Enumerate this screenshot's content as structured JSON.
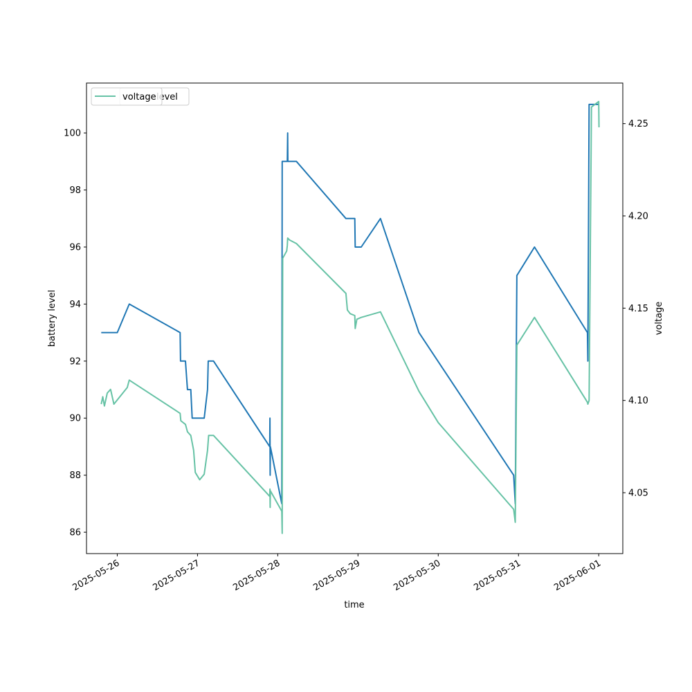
{
  "chart_data": {
    "type": "line",
    "xlabel": "time",
    "ylabel_left": "battery level",
    "ylabel_right": "voltage",
    "x_ticks": [
      "2025-05-26",
      "2025-05-27",
      "2025-05-28",
      "2025-05-29",
      "2025-05-30",
      "2025-05-31",
      "2025-06-01"
    ],
    "y_left_ticks": [
      86,
      88,
      90,
      92,
      94,
      96,
      98,
      100
    ],
    "y_right_ticks": [
      "4.05",
      "4.10",
      "4.15",
      "4.20",
      "4.25"
    ],
    "x_range": [
      "2025-05-25T14:48",
      "2025-06-01T07:12"
    ],
    "y_left_range": [
      85.25,
      101.75
    ],
    "y_right_range": [
      4.017,
      4.272
    ],
    "legend": {
      "placement": "upper left",
      "entries": [
        "voltage"
      ],
      "obscured_entry": "level",
      "note_visible_text": "voltage level"
    },
    "colors": {
      "level": "#1f77b4",
      "voltage": "#66c2a5"
    },
    "series": [
      {
        "axis": "left",
        "points": [
          [
            "2025-05-25T19:12",
            93
          ],
          [
            "2025-05-26T00:00",
            93
          ],
          [
            "2025-05-26T03:36",
            94
          ],
          [
            "2025-05-26T18:48",
            93
          ],
          [
            "2025-05-26T18:55",
            92
          ],
          [
            "2025-05-26T20:24",
            92
          ],
          [
            "2025-05-26T21:00",
            91
          ],
          [
            "2025-05-26T22:00",
            91
          ],
          [
            "2025-05-26T22:24",
            90
          ],
          [
            "2025-05-27T02:00",
            90
          ],
          [
            "2025-05-27T03:00",
            91
          ],
          [
            "2025-05-27T03:12",
            92
          ],
          [
            "2025-05-27T04:48",
            92
          ],
          [
            "2025-05-27T21:36",
            89
          ],
          [
            "2025-05-27T21:40",
            90
          ],
          [
            "2025-05-27T21:44",
            88
          ],
          [
            "2025-05-27T21:48",
            89
          ],
          [
            "2025-05-28T01:12",
            87
          ],
          [
            "2025-05-28T01:20",
            99
          ],
          [
            "2025-05-28T02:52",
            99
          ],
          [
            "2025-05-28T02:58",
            100
          ],
          [
            "2025-05-28T03:02",
            99
          ],
          [
            "2025-05-28T05:36",
            99
          ],
          [
            "2025-05-28T20:24",
            97
          ],
          [
            "2025-05-28T23:02",
            97
          ],
          [
            "2025-05-28T23:10",
            96
          ],
          [
            "2025-05-29T00:58",
            96
          ],
          [
            "2025-05-29T06:43",
            97
          ],
          [
            "2025-05-29T18:14",
            93
          ],
          [
            "2025-05-30T22:34",
            88
          ],
          [
            "2025-05-30T23:02",
            87
          ],
          [
            "2025-05-30T23:31",
            95
          ],
          [
            "2025-05-31T04:48",
            96
          ],
          [
            "2025-05-31T20:38",
            93
          ],
          [
            "2025-05-31T20:45",
            92
          ],
          [
            "2025-05-31T21:07",
            101
          ],
          [
            "2025-06-01T00:00",
            101
          ]
        ]
      },
      {
        "name": "voltage",
        "axis": "right",
        "points": [
          [
            "2025-05-25T19:12",
            4.098
          ],
          [
            "2025-05-25T19:40",
            4.102
          ],
          [
            "2025-05-25T20:10",
            4.097
          ],
          [
            "2025-05-25T21:00",
            4.104
          ],
          [
            "2025-05-25T22:00",
            4.106
          ],
          [
            "2025-05-25T23:00",
            4.098
          ],
          [
            "2025-05-26T03:00",
            4.107
          ],
          [
            "2025-05-26T03:36",
            4.111
          ],
          [
            "2025-05-26T18:48",
            4.093
          ],
          [
            "2025-05-26T19:00",
            4.089
          ],
          [
            "2025-05-26T20:24",
            4.087
          ],
          [
            "2025-05-26T21:00",
            4.083
          ],
          [
            "2025-05-26T22:00",
            4.081
          ],
          [
            "2025-05-26T22:50",
            4.073
          ],
          [
            "2025-05-26T23:20",
            4.061
          ],
          [
            "2025-05-27T00:40",
            4.057
          ],
          [
            "2025-05-27T02:00",
            4.06
          ],
          [
            "2025-05-27T03:00",
            4.073
          ],
          [
            "2025-05-27T03:20",
            4.081
          ],
          [
            "2025-05-27T04:48",
            4.081
          ],
          [
            "2025-05-27T21:36",
            4.048
          ],
          [
            "2025-05-27T21:40",
            4.052
          ],
          [
            "2025-05-27T21:44",
            4.042
          ],
          [
            "2025-05-27T21:48",
            4.051
          ],
          [
            "2025-05-28T01:12",
            4.04
          ],
          [
            "2025-05-28T01:20",
            4.028
          ],
          [
            "2025-05-28T01:28",
            4.177
          ],
          [
            "2025-05-28T02:40",
            4.181
          ],
          [
            "2025-05-28T02:52",
            4.184
          ],
          [
            "2025-05-28T02:58",
            4.188
          ],
          [
            "2025-05-28T03:30",
            4.187
          ],
          [
            "2025-05-28T05:36",
            4.185
          ],
          [
            "2025-05-28T20:24",
            4.158
          ],
          [
            "2025-05-28T20:50",
            4.149
          ],
          [
            "2025-05-28T21:40",
            4.147
          ],
          [
            "2025-05-28T23:02",
            4.146
          ],
          [
            "2025-05-28T23:10",
            4.139
          ],
          [
            "2025-05-28T23:40",
            4.144
          ],
          [
            "2025-05-29T00:58",
            4.145
          ],
          [
            "2025-05-29T06:43",
            4.148
          ],
          [
            "2025-05-29T18:14",
            4.105
          ],
          [
            "2025-05-30T00:00",
            4.088
          ],
          [
            "2025-05-30T22:34",
            4.041
          ],
          [
            "2025-05-30T23:02",
            4.034
          ],
          [
            "2025-05-30T23:31",
            4.13
          ],
          [
            "2025-05-31T04:48",
            4.145
          ],
          [
            "2025-05-31T20:38",
            4.099
          ],
          [
            "2025-05-31T20:45",
            4.098
          ],
          [
            "2025-05-31T21:07",
            4.1
          ],
          [
            "2025-05-31T21:50",
            4.259
          ],
          [
            "2025-06-01T00:00",
            4.262
          ],
          [
            "2025-06-01T00:05",
            4.248
          ]
        ]
      }
    ]
  }
}
